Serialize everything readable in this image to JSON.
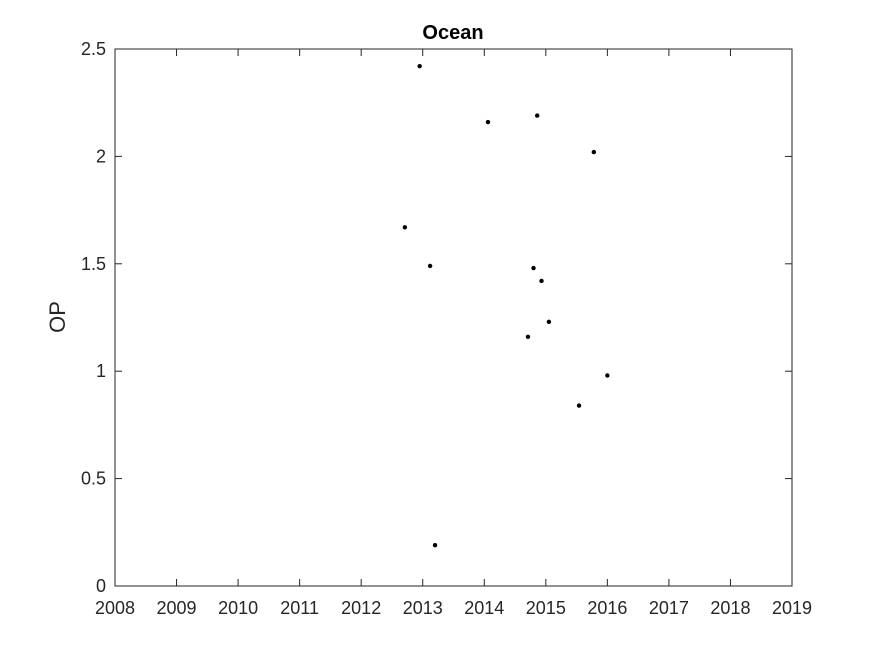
{
  "chart_data": {
    "type": "scatter",
    "title": "Ocean",
    "xlabel": "",
    "ylabel": "OP",
    "xlim": [
      2008,
      2019
    ],
    "ylim": [
      0,
      2.5
    ],
    "xticks": [
      2008,
      2009,
      2010,
      2011,
      2012,
      2013,
      2014,
      2015,
      2016,
      2017,
      2018,
      2019
    ],
    "yticks": [
      0,
      0.5,
      1,
      1.5,
      2,
      2.5
    ],
    "xtick_labels": [
      "2008",
      "2009",
      "2010",
      "2011",
      "2012",
      "2013",
      "2014",
      "2015",
      "2016",
      "2017",
      "2018",
      "2019"
    ],
    "ytick_labels": [
      "0",
      "0.5",
      "1",
      "1.5",
      "2",
      "2.5"
    ],
    "grid": false,
    "marker_color": "#000000",
    "series": [
      {
        "x": [
          2012.95,
          2014.06,
          2014.86,
          2015.78,
          2012.71,
          2013.12,
          2014.8,
          2014.93,
          2015.05,
          2014.71,
          2016.0,
          2015.54,
          2013.2
        ],
        "y": [
          2.42,
          2.16,
          2.19,
          2.02,
          1.67,
          1.49,
          1.48,
          1.42,
          1.23,
          1.16,
          0.98,
          0.84,
          0.19
        ]
      }
    ]
  }
}
